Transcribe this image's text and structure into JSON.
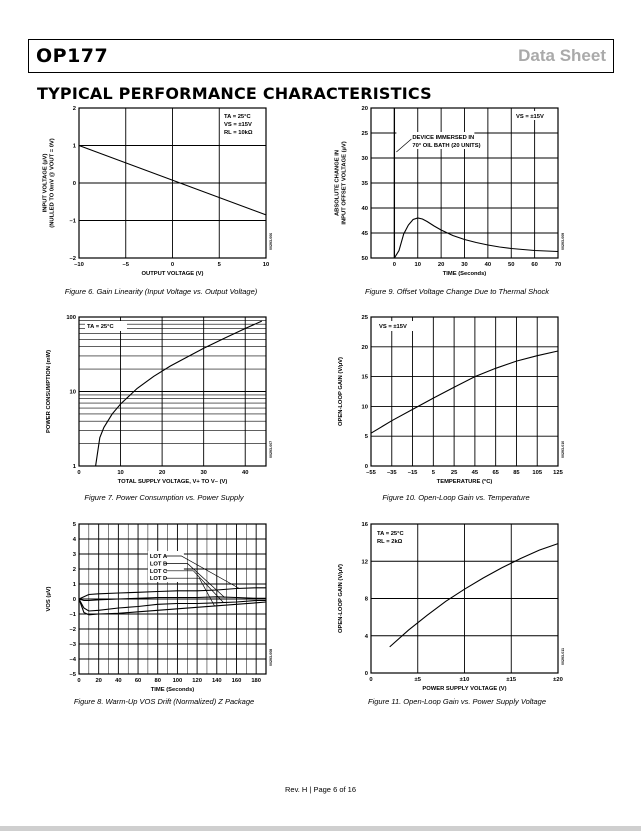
{
  "header": {
    "part_number": "OP177",
    "doc_type": "Data Sheet"
  },
  "section_title": "TYPICAL PERFORMANCE CHARACTERISTICS",
  "footer": {
    "revision": "Rev. H | Page 6 of 16"
  },
  "chart_data": [
    {
      "id": "fig6",
      "type": "line",
      "caption": "Figure 6. Gain Linearity (Input Voltage vs. Output Voltage)",
      "xlabel": "OUTPUT VOLTAGE (V)",
      "ylabel_lines": [
        "INPUT VOLTAGE (µV)",
        "(NULLED TO 0mV @ VOUT = 0V)"
      ],
      "xlim": [
        -10,
        10
      ],
      "ylim": [
        -2,
        2
      ],
      "xticks": [
        -10,
        -5,
        0,
        5,
        10
      ],
      "yticks": [
        -2,
        -1,
        0,
        1,
        2
      ],
      "xtick_labels": [
        "–10",
        "–5",
        "0",
        "5",
        "10"
      ],
      "ytick_labels": [
        "–2",
        "–1",
        "0",
        "1",
        "2"
      ],
      "grid": true,
      "annotations": [
        "TA = 25°C",
        "VS = ±15V",
        "RL = 10kΩ"
      ],
      "series": [
        {
          "x": [
            -10,
            10
          ],
          "y": [
            1.0,
            -0.85
          ]
        }
      ],
      "code": "00293-006"
    },
    {
      "id": "fig9",
      "type": "line",
      "caption": "Figure 9. Offset Voltage Change Due to Thermal Shock",
      "xlabel": "TIME (Seconds)",
      "ylabel_lines": [
        "ABSOLUTE CHANGE IN",
        "INPUT OFFSET VOLTAGE (µV)"
      ],
      "xlim": [
        -10,
        70
      ],
      "ylim": [
        20,
        50
      ],
      "y_inverted": true,
      "xticks": [
        -10,
        0,
        10,
        20,
        30,
        40,
        50,
        60,
        70
      ],
      "yticks": [
        20,
        25,
        30,
        35,
        40,
        45,
        50
      ],
      "xtick_labels": [
        "",
        "0",
        "10",
        "20",
        "30",
        "40",
        "50",
        "60",
        "70"
      ],
      "ytick_labels": [
        "20",
        "25",
        "30",
        "35",
        "40",
        "45",
        "50"
      ],
      "grid": true,
      "annotations": [
        "VS = ±15V",
        "DEVICE IMMERSED IN",
        "70° OIL BATH (20 UNITS)"
      ],
      "series": [
        {
          "x": [
            -10,
            0,
            2,
            4,
            6,
            8,
            10,
            12,
            14,
            17,
            20,
            25,
            30,
            35,
            40,
            45,
            50,
            55,
            60,
            65,
            70
          ],
          "y": [
            50,
            50,
            48.5,
            45.2,
            43.4,
            42.3,
            42.0,
            42.2,
            42.7,
            43.6,
            44.4,
            45.5,
            46.3,
            46.9,
            47.4,
            47.8,
            48.1,
            48.3,
            48.5,
            48.6,
            48.7
          ]
        }
      ],
      "code": "00293-009"
    },
    {
      "id": "fig7",
      "type": "line",
      "caption": "Figure 7. Power Consumption vs. Power Supply",
      "xlabel": "TOTAL SUPPLY VOLTAGE, V+ TO V– (V)",
      "ylabel_lines": [
        "POWER CONSUMPTION (mW)"
      ],
      "xlim": [
        0,
        45
      ],
      "ylim": [
        1,
        100
      ],
      "y_scale": "log",
      "xticks": [
        0,
        10,
        20,
        30,
        40
      ],
      "yticks": [
        1,
        10,
        100
      ],
      "xtick_labels": [
        "0",
        "10",
        "20",
        "30",
        "40"
      ],
      "ytick_labels": [
        "1",
        "10",
        "100"
      ],
      "grid": true,
      "annotations": [
        "TA = 25°C"
      ],
      "series": [
        {
          "x": [
            4,
            5,
            6,
            8,
            10,
            14,
            18,
            22,
            26,
            30,
            35,
            40,
            44
          ],
          "y": [
            1,
            2.4,
            3.3,
            5.0,
            6.8,
            11,
            16,
            22,
            29,
            38,
            52,
            70,
            88
          ]
        }
      ],
      "code": "00293-007"
    },
    {
      "id": "fig10",
      "type": "line",
      "caption": "Figure 10. Open-Loop Gain vs. Temperature",
      "xlabel": "TEMPERATURE (°C)",
      "ylabel_lines": [
        "OPEN-LOOP GAIN (V/µV)"
      ],
      "xlim": [
        -55,
        125
      ],
      "ylim": [
        0,
        25
      ],
      "xticks": [
        -55,
        -35,
        -15,
        5,
        25,
        45,
        65,
        85,
        105,
        125
      ],
      "yticks": [
        0,
        5,
        10,
        15,
        20,
        25
      ],
      "xtick_labels": [
        "–55",
        "–35",
        "–15",
        "5",
        "25",
        "45",
        "65",
        "85",
        "105",
        "125"
      ],
      "ytick_labels": [
        "0",
        "5",
        "10",
        "15",
        "20",
        "25"
      ],
      "grid": true,
      "annotations": [
        "VS = ±15V"
      ],
      "series": [
        {
          "x": [
            -55,
            -35,
            -15,
            5,
            25,
            45,
            65,
            85,
            105,
            125
          ],
          "y": [
            5.5,
            7.6,
            9.5,
            11.4,
            13.2,
            15.0,
            16.4,
            17.6,
            18.5,
            19.3
          ]
        }
      ],
      "code": "00293-010"
    },
    {
      "id": "fig8",
      "type": "line",
      "caption": "Figure 8. Warm-Up VOS Drift (Normalized) Z Package",
      "xlabel": "TIME (Seconds)",
      "ylabel_lines": [
        "VOS (µV)"
      ],
      "xlim": [
        0,
        190
      ],
      "ylim": [
        -5,
        5
      ],
      "xticks": [
        0,
        20,
        40,
        60,
        80,
        100,
        120,
        140,
        160,
        180
      ],
      "yticks": [
        -5,
        -4,
        -3,
        -2,
        -1,
        0,
        1,
        2,
        3,
        4,
        5
      ],
      "xtick_labels": [
        "0",
        "20",
        "40",
        "60",
        "80",
        "100",
        "120",
        "140",
        "160",
        "180"
      ],
      "ytick_labels": [
        "–5",
        "–4",
        "–3",
        "–2",
        "–1",
        "0",
        "1",
        "2",
        "3",
        "4",
        "5"
      ],
      "grid": true,
      "series": [
        {
          "name": "LOT A",
          "x": [
            0,
            5,
            10,
            20,
            40,
            60,
            80,
            100,
            120,
            140,
            160,
            180,
            190
          ],
          "y": [
            0,
            0.15,
            0.3,
            0.35,
            0.4,
            0.45,
            0.5,
            0.55,
            0.55,
            0.6,
            0.7,
            0.75,
            0.75
          ]
        },
        {
          "name": "LOT B",
          "x": [
            0,
            5,
            10,
            20,
            40,
            60,
            80,
            100,
            120,
            140,
            160,
            180,
            190
          ],
          "y": [
            0,
            -0.1,
            -0.1,
            -0.05,
            0,
            0.05,
            0.1,
            0.1,
            0.1,
            0.15,
            0.1,
            0.05,
            0.05
          ]
        },
        {
          "name": "LOT C",
          "x": [
            0,
            5,
            10,
            20,
            40,
            60,
            80,
            100,
            120,
            140,
            160,
            180,
            190
          ],
          "y": [
            0,
            -0.6,
            -0.8,
            -0.75,
            -0.6,
            -0.5,
            -0.35,
            -0.3,
            -0.3,
            -0.25,
            -0.2,
            -0.1,
            -0.1
          ]
        },
        {
          "name": "LOT D",
          "x": [
            0,
            5,
            10,
            20,
            40,
            60,
            80,
            100,
            120,
            140,
            160,
            180,
            190
          ],
          "y": [
            0,
            -0.9,
            -1.05,
            -1.0,
            -0.95,
            -0.85,
            -0.75,
            -0.65,
            -0.55,
            -0.45,
            -0.35,
            -0.25,
            -0.2
          ]
        }
      ],
      "code": "00293-008"
    },
    {
      "id": "fig11",
      "type": "line",
      "caption": "Figure 11. Open-Loop Gain vs. Power Supply Voltage",
      "xlabel": "POWER SUPPLY VOLTAGE (V)",
      "ylabel_lines": [
        "OPEN-LOOP GAIN (V/µV)"
      ],
      "xlim": [
        0,
        20
      ],
      "ylim": [
        0,
        16
      ],
      "xticks": [
        0,
        5,
        10,
        15,
        20
      ],
      "yticks": [
        0,
        4,
        8,
        12,
        16
      ],
      "xtick_labels": [
        "0",
        "±5",
        "±10",
        "±15",
        "±20"
      ],
      "ytick_labels": [
        "0",
        "4",
        "8",
        "12",
        "16"
      ],
      "grid": true,
      "annotations": [
        "TA = 25°C",
        "RL = 2kΩ"
      ],
      "series": [
        {
          "x": [
            2,
            4,
            6,
            8,
            10,
            12,
            14,
            16,
            18,
            20
          ],
          "y": [
            2.8,
            4.6,
            6.2,
            7.7,
            9.0,
            10.2,
            11.3,
            12.3,
            13.2,
            13.9
          ]
        }
      ],
      "code": "00293-011"
    }
  ]
}
